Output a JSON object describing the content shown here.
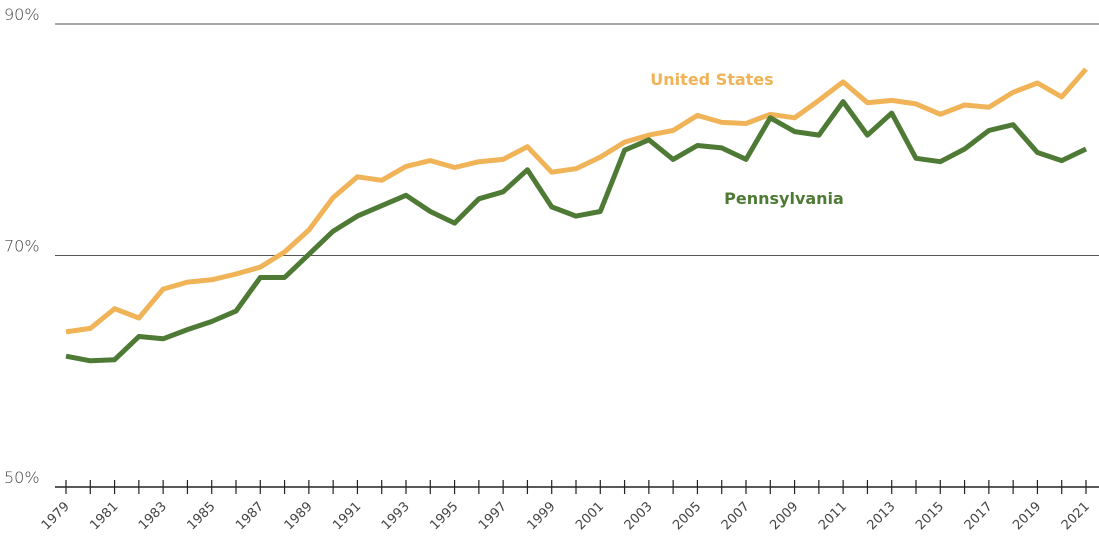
{
  "chart_data": {
    "type": "line",
    "categories": [
      "1979",
      null,
      "1981",
      null,
      "1983",
      null,
      "1985",
      null,
      "1987",
      null,
      "1989",
      null,
      "1991",
      null,
      "1993",
      null,
      "1995",
      null,
      "1997",
      null,
      "1999",
      null,
      "2001",
      null,
      "2003",
      null,
      "2005",
      null,
      "2007",
      null,
      "2009",
      null,
      "2011",
      null,
      "2013",
      null,
      "2015",
      null,
      "2017",
      null,
      "2019",
      null,
      "2021"
    ],
    "series": [
      {
        "name": "United States",
        "color": "#f0b357",
        "values": [
          63.4,
          63.7,
          65.4,
          64.6,
          67.1,
          67.7,
          67.9,
          68.4,
          69.0,
          70.3,
          72.2,
          75.0,
          76.8,
          76.5,
          77.7,
          78.2,
          77.6,
          78.1,
          78.3,
          79.4,
          77.2,
          77.5,
          78.5,
          79.8,
          80.4,
          80.8,
          82.1,
          81.5,
          81.4,
          82.2,
          81.9,
          83.4,
          85.0,
          83.2,
          83.4,
          83.1,
          82.2,
          83.0,
          82.8,
          84.1,
          84.9,
          83.7,
          86.1
        ]
      },
      {
        "name": "Pennsylvania",
        "color": "#4e7a35",
        "values": [
          61.3,
          60.9,
          61.0,
          63.0,
          62.8,
          63.6,
          64.3,
          65.2,
          68.1,
          68.1,
          70.1,
          72.1,
          73.4,
          74.3,
          75.2,
          73.8,
          72.8,
          74.9,
          75.5,
          77.4,
          74.2,
          73.4,
          73.8,
          79.1,
          80.0,
          78.3,
          79.5,
          79.3,
          78.3,
          81.9,
          80.7,
          80.4,
          83.3,
          80.4,
          82.3,
          78.4,
          78.1,
          79.2,
          80.8,
          81.3,
          78.9,
          78.2,
          79.2
        ]
      }
    ],
    "ylim": [
      50,
      90
    ],
    "yticks": [
      {
        "value": 50,
        "label": "50%"
      },
      {
        "value": 70,
        "label": "70%"
      },
      {
        "value": 90,
        "label": "90%"
      }
    ],
    "grid": true
  }
}
